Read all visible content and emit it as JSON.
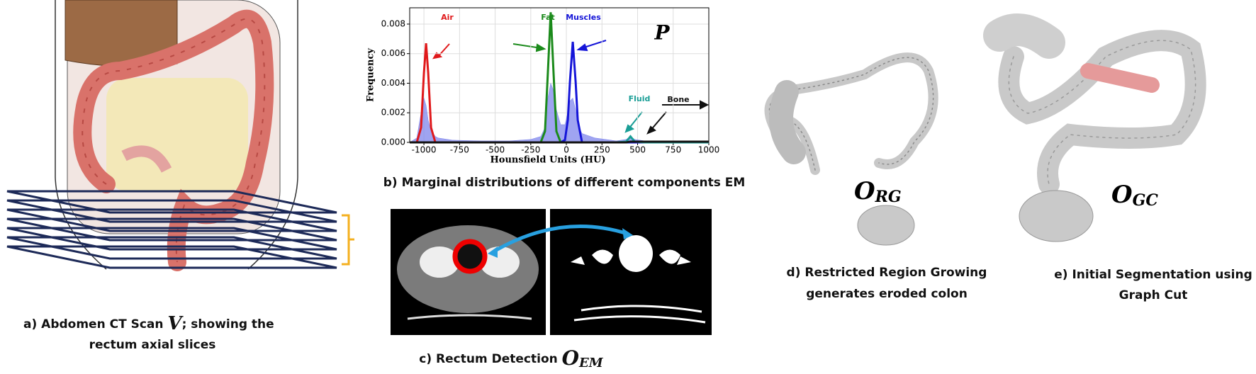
{
  "chart_data": {
    "type": "line",
    "x_label": "Hounsfield Units (HU)",
    "y_label": "Frequency",
    "xlim": [
      -1100,
      1000
    ],
    "ylim": [
      0,
      0.0091
    ],
    "xticks": [
      -1000,
      -750,
      -500,
      -250,
      0,
      250,
      500,
      750,
      1000
    ],
    "yticks": [
      {
        "value": 0,
        "label": "0.000"
      },
      {
        "value": 0.002,
        "label": "0.002"
      },
      {
        "value": 0.004,
        "label": "0.004"
      },
      {
        "value": 0.006,
        "label": "0.006"
      },
      {
        "value": 0.008,
        "label": "0.008"
      }
    ],
    "grid": true,
    "x": [
      -1100,
      -1050,
      -1020,
      -1000,
      -985,
      -970,
      -950,
      -920,
      -900,
      -800,
      -600,
      -400,
      -250,
      -180,
      -150,
      -130,
      -110,
      -90,
      -70,
      -40,
      -10,
      10,
      25,
      45,
      65,
      80,
      110,
      200,
      350,
      420,
      450,
      480,
      550,
      700,
      1000
    ],
    "series": [
      {
        "type": "area",
        "color": "#7f86ec",
        "values": [
          0,
          0.0003,
          0.002,
          0.003,
          0.0025,
          0.0015,
          0.0008,
          0.0004,
          0.0003,
          0.00015,
          0.0001,
          0.0001,
          0.0002,
          0.0004,
          0.001,
          0.003,
          0.004,
          0.0035,
          0.0022,
          0.0012,
          0.0012,
          0.002,
          0.0028,
          0.003,
          0.0022,
          0.0012,
          0.0006,
          0.0003,
          0.0001,
          0.0002,
          0.0004,
          0.0002,
          0.0001,
          5e-05,
          2e-05
        ]
      },
      {
        "name": "Air",
        "color": "#e0191b",
        "values": [
          0,
          0,
          0.001,
          0.0047,
          0.0067,
          0.0047,
          0.001,
          0,
          0,
          0,
          0,
          0,
          0,
          0,
          0,
          0,
          0,
          0,
          0,
          0,
          0,
          0,
          0,
          0,
          0,
          0,
          0,
          0,
          0,
          0,
          0,
          0,
          0,
          0,
          0
        ]
      },
      {
        "name": "Fat",
        "color": "#1b8a1b",
        "values": [
          0,
          0,
          0,
          0,
          0,
          0,
          0,
          0,
          0,
          0,
          0,
          0,
          0,
          0,
          0.00075,
          0.0047,
          0.0088,
          0.0047,
          0.00075,
          0,
          0,
          0,
          0,
          0,
          0,
          0,
          0,
          0,
          0,
          0,
          0,
          0,
          0,
          0,
          0
        ]
      },
      {
        "name": "Muscles",
        "color": "#1515d8",
        "values": [
          0,
          0,
          0,
          0,
          0,
          0,
          0,
          0,
          0,
          0,
          0,
          0,
          0,
          0,
          0,
          0,
          0,
          0,
          0,
          0,
          0.00016,
          0.0015,
          0.0041,
          0.0068,
          0.0041,
          0.0015,
          0,
          0,
          0,
          0,
          0,
          0,
          0,
          0,
          0
        ]
      },
      {
        "name": "Fluid",
        "color": "#1a9e96",
        "values": [
          0,
          0,
          0,
          0,
          0,
          0,
          0,
          0,
          0,
          0,
          0,
          0,
          0,
          0,
          0,
          0,
          0,
          0,
          0,
          0,
          0,
          0,
          0,
          0,
          0,
          0,
          0,
          0,
          0,
          5e-05,
          0.0004,
          5e-05,
          0,
          0,
          0
        ]
      },
      {
        "name": "Bone",
        "color": "#111111",
        "values": [
          0,
          0,
          0,
          0,
          0,
          0,
          0,
          0,
          0,
          0,
          0,
          0,
          0,
          0,
          0,
          0,
          0,
          0,
          0,
          0,
          0,
          0,
          0,
          0,
          0,
          0,
          0,
          0,
          0,
          0,
          5e-05,
          5e-05,
          5e-05,
          5e-05,
          5e-05
        ]
      }
    ],
    "annotations": [
      {
        "text": "P",
        "color": "#000000"
      }
    ]
  },
  "panels": {
    "a": {
      "caption": [
        "a) Abdomen CT Scan ",
        "V",
        ";  showing the",
        "rectum axial slices"
      ]
    },
    "b": {
      "caption": "b) Marginal distributions of different components EM"
    },
    "c": {
      "caption": [
        "c) Rectum Detection ",
        "O",
        "EM"
      ]
    },
    "d": {
      "label": [
        "O",
        "RG"
      ],
      "caption": [
        "d) Restricted Region Growing",
        "generates eroded colon"
      ]
    },
    "e": {
      "label": [
        "O",
        "GC"
      ],
      "caption": [
        "e) Initial Segmentation using",
        "Graph Cut"
      ]
    }
  }
}
